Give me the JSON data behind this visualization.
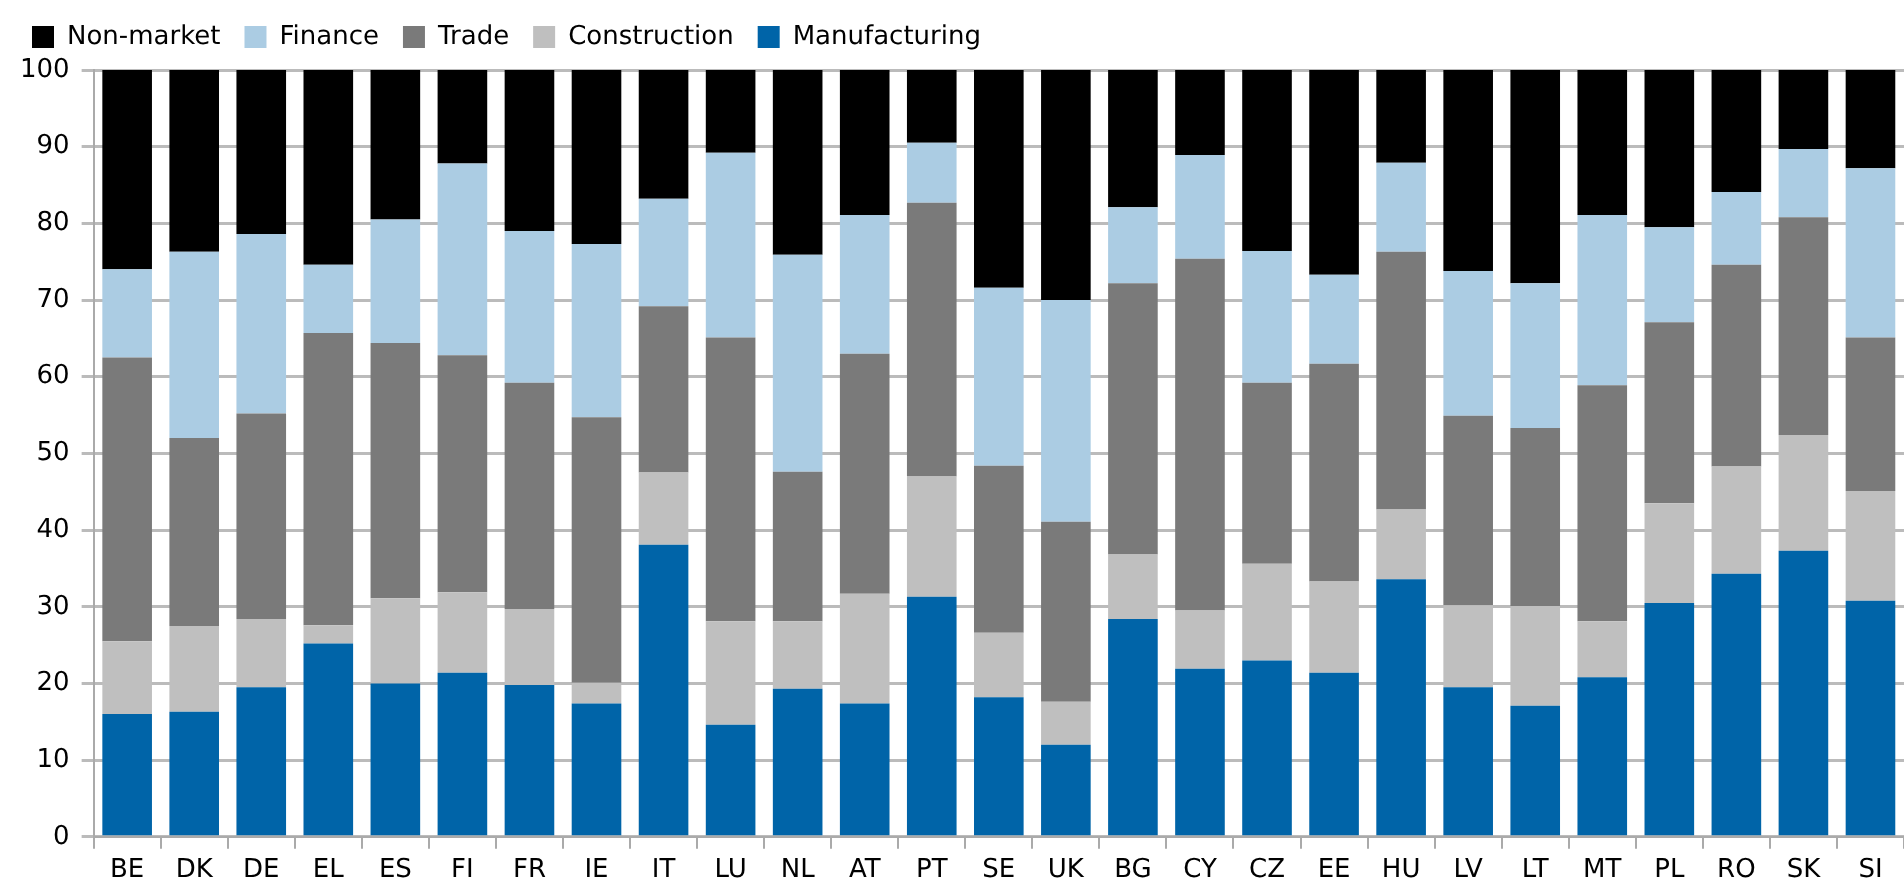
{
  "chart_data": {
    "type": "bar",
    "stacked": true,
    "categories": [
      "BE",
      "DK",
      "DE",
      "EL",
      "ES",
      "FI",
      "FR",
      "IE",
      "IT",
      "LU",
      "NL",
      "AT",
      "PT",
      "SE",
      "UK",
      "BG",
      "CY",
      "CZ",
      "EE",
      "HU",
      "LV",
      "LT",
      "MT",
      "PL",
      "RO",
      "SK",
      "SI"
    ],
    "series": [
      {
        "name": "Manufacturing",
        "color": "#0064a8",
        "values": [
          16.0,
          16.3,
          19.5,
          25.2,
          20.0,
          21.4,
          19.8,
          17.4,
          38.1,
          14.6,
          19.3,
          17.4,
          31.3,
          18.2,
          12.0,
          28.4,
          21.9,
          23.0,
          21.4,
          33.6,
          19.5,
          17.1,
          20.8,
          30.5,
          34.3,
          37.3,
          30.8
        ]
      },
      {
        "name": "Construction",
        "color": "#bfbfbf",
        "values": [
          9.5,
          11.2,
          8.9,
          2.4,
          11.1,
          10.5,
          9.9,
          2.7,
          9.4,
          13.5,
          8.8,
          14.3,
          15.7,
          8.4,
          5.6,
          8.4,
          7.6,
          12.6,
          11.9,
          9.1,
          10.7,
          13.0,
          7.3,
          13.0,
          14.0,
          15.1,
          14.3
        ]
      },
      {
        "name": "Trade",
        "color": "#7a7a7a",
        "values": [
          37.0,
          24.5,
          26.8,
          38.1,
          33.3,
          30.9,
          29.5,
          34.6,
          21.7,
          37.0,
          19.5,
          31.3,
          35.7,
          21.8,
          23.5,
          35.4,
          45.9,
          23.6,
          28.4,
          33.6,
          24.7,
          23.2,
          30.8,
          23.6,
          26.3,
          28.4,
          20.0
        ]
      },
      {
        "name": "Finance",
        "color": "#abcce3",
        "values": [
          11.5,
          24.3,
          23.4,
          8.9,
          16.1,
          25.0,
          19.8,
          22.6,
          14.0,
          24.1,
          28.3,
          18.1,
          7.8,
          23.2,
          28.9,
          9.9,
          13.5,
          17.2,
          11.6,
          11.6,
          18.9,
          18.9,
          22.2,
          12.4,
          9.5,
          8.9,
          22.1
        ]
      },
      {
        "name": "Non-market",
        "color": "#000000",
        "values": [
          26.0,
          23.7,
          21.4,
          25.4,
          19.5,
          12.2,
          21.0,
          22.7,
          16.8,
          10.8,
          24.1,
          18.9,
          9.5,
          28.4,
          30.0,
          17.9,
          11.1,
          23.6,
          26.7,
          12.1,
          26.2,
          27.8,
          18.9,
          20.5,
          15.9,
          10.3,
          12.8
        ]
      }
    ],
    "ylim": [
      0,
      100
    ],
    "yticks": [
      0,
      10,
      20,
      30,
      40,
      50,
      60,
      70,
      80,
      90,
      100
    ],
    "grid": "y",
    "legend": "top left"
  }
}
